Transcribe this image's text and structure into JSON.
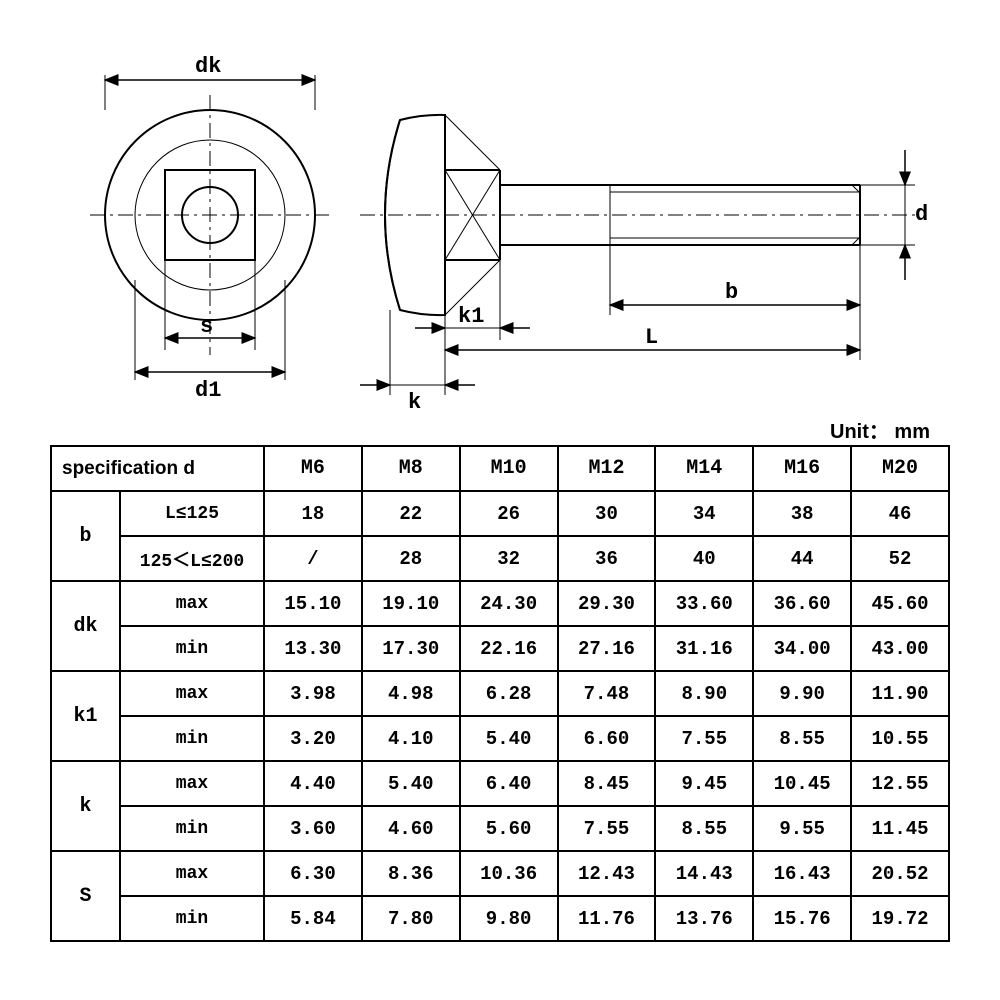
{
  "unit_label": "Unit： mm",
  "diagram_labels": {
    "dk": "dk",
    "d1": "d1",
    "s": "s",
    "k": "k",
    "k1": "k1",
    "L": "L",
    "b": "b",
    "d": "d"
  },
  "table": {
    "header_label": "specification  d",
    "columns": [
      "M6",
      "M8",
      "M10",
      "M12",
      "M14",
      "M16",
      "M20"
    ],
    "groups": [
      {
        "param": "b",
        "rows": [
          {
            "label": "L≤125",
            "vals": [
              "18",
              "22",
              "26",
              "30",
              "34",
              "38",
              "46"
            ]
          },
          {
            "label": "125＜L≤200",
            "vals": [
              "/",
              "28",
              "32",
              "36",
              "40",
              "44",
              "52"
            ]
          }
        ]
      },
      {
        "param": "dk",
        "rows": [
          {
            "label": "max",
            "vals": [
              "15.10",
              "19.10",
              "24.30",
              "29.30",
              "33.60",
              "36.60",
              "45.60"
            ]
          },
          {
            "label": "min",
            "vals": [
              "13.30",
              "17.30",
              "22.16",
              "27.16",
              "31.16",
              "34.00",
              "43.00"
            ]
          }
        ]
      },
      {
        "param": "k1",
        "rows": [
          {
            "label": "max",
            "vals": [
              "3.98",
              "4.98",
              "6.28",
              "7.48",
              "8.90",
              "9.90",
              "11.90"
            ]
          },
          {
            "label": "min",
            "vals": [
              "3.20",
              "4.10",
              "5.40",
              "6.60",
              "7.55",
              "8.55",
              "10.55"
            ]
          }
        ]
      },
      {
        "param": "k",
        "rows": [
          {
            "label": "max",
            "vals": [
              "4.40",
              "5.40",
              "6.40",
              "8.45",
              "9.45",
              "10.45",
              "12.55"
            ]
          },
          {
            "label": "min",
            "vals": [
              "3.60",
              "4.60",
              "5.60",
              "7.55",
              "8.55",
              "9.55",
              "11.45"
            ]
          }
        ]
      },
      {
        "param": "S",
        "rows": [
          {
            "label": "max",
            "vals": [
              "6.30",
              "8.36",
              "10.36",
              "12.43",
              "14.43",
              "16.43",
              "20.52"
            ]
          },
          {
            "label": "min",
            "vals": [
              "5.84",
              "7.80",
              "9.80",
              "11.76",
              "13.76",
              "15.76",
              "19.72"
            ]
          }
        ]
      }
    ]
  },
  "styling": {
    "line_color": "#000000",
    "bg_color": "#ffffff",
    "font_mono": "Courier New",
    "font_sans": "Arial",
    "table_border_width": 2
  }
}
